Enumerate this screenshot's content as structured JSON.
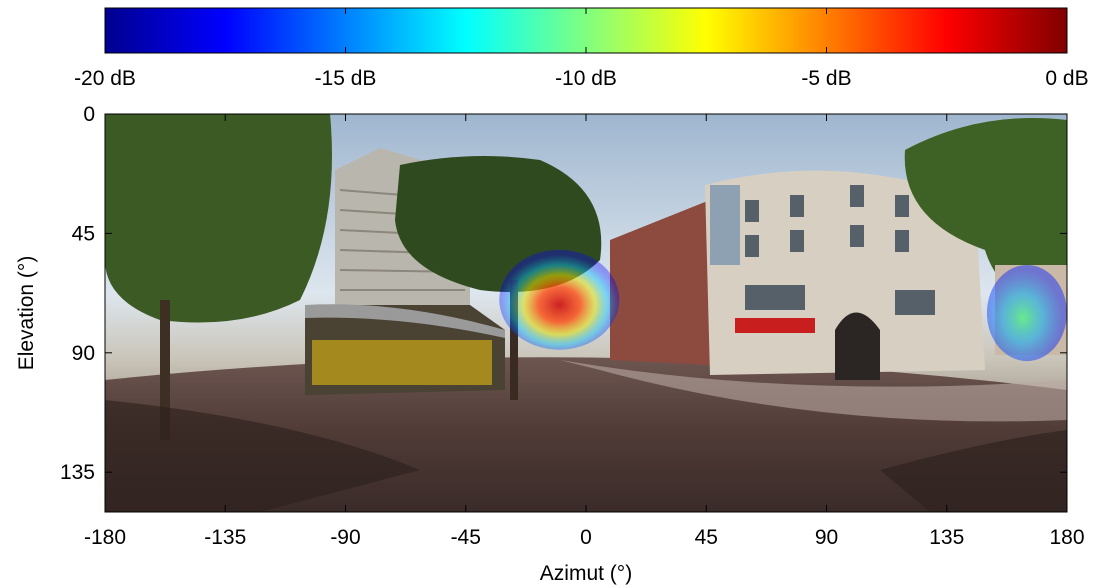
{
  "chart_data": {
    "type": "heatmap",
    "title": "",
    "xlabel": "Azimut (°)",
    "ylabel": "Elevation (°)",
    "xlim": [
      -180,
      180
    ],
    "ylim": [
      0,
      150
    ],
    "y_reversed": true,
    "x_ticks": [
      -180,
      -135,
      -90,
      -45,
      0,
      45,
      90,
      135,
      180
    ],
    "y_ticks": [
      0,
      45,
      90,
      135
    ],
    "grid": false,
    "background": "360° panoramic street photograph (equirectangular)",
    "colormap": "jet",
    "colorbar": {
      "position": "top",
      "range_db": [
        -20,
        0
      ],
      "ticks": [
        -20,
        -15,
        -10,
        -5,
        0
      ],
      "tick_labels": [
        "-20 dB",
        "-15 dB",
        "-10 dB",
        "-5 dB",
        "0 dB"
      ]
    },
    "hotspots": [
      {
        "azimuth": -10,
        "elevation": 70,
        "peak_db": 0
      },
      {
        "azimuth": 165,
        "elevation": 75,
        "peak_db": -8
      }
    ]
  }
}
